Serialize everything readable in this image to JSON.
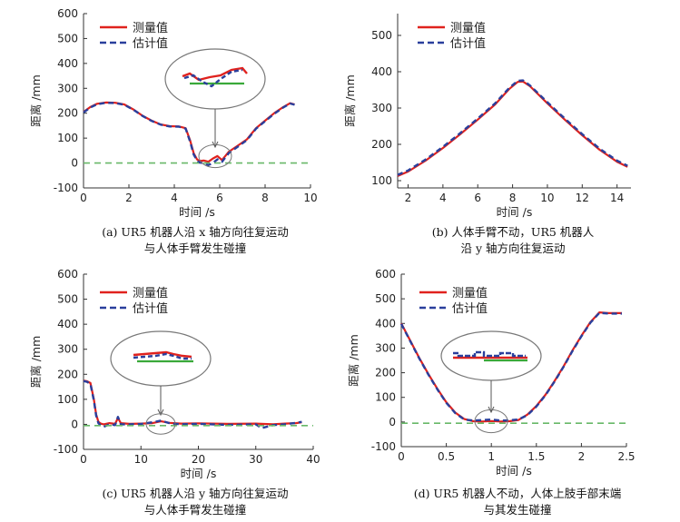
{
  "colors": {
    "measured": "#e0221e",
    "estimated": "#2a3f9c",
    "threshold": "#68b868",
    "zoom_green": "#3aa93a",
    "axis": "#333333"
  },
  "chart_data": [
    {
      "type": "line",
      "panel": "a",
      "caption_line1": "(a) UR5 机器人沿 x 轴方向往复运动",
      "caption_line2": "与人体手臂发生碰撞",
      "xlabel": "时间 /s",
      "ylabel": "距离 /mm",
      "xlim": [
        0,
        10
      ],
      "ylim": [
        -100,
        600
      ],
      "xticks": [
        0,
        2,
        4,
        6,
        8,
        10
      ],
      "yticks": [
        -100,
        0,
        100,
        200,
        300,
        400,
        500,
        600
      ],
      "legend": [
        "测量值",
        "估计值"
      ],
      "legend_position": "top-left",
      "inset": "zoom of collision region",
      "series": [
        {
          "name": "测量值",
          "style": "solid",
          "x": [
            0,
            0.3,
            0.6,
            1.0,
            1.4,
            1.8,
            2.2,
            2.6,
            3.0,
            3.4,
            3.8,
            4.2,
            4.5,
            4.7,
            4.85,
            5.0,
            5.1,
            5.3,
            5.5,
            5.7,
            5.9,
            6.1,
            6.4,
            6.8,
            7.2,
            7.6,
            8.0,
            8.4,
            8.8,
            9.1,
            9.3
          ],
          "values": [
            205,
            225,
            238,
            243,
            242,
            235,
            215,
            190,
            170,
            155,
            148,
            147,
            140,
            90,
            40,
            15,
            8,
            10,
            5,
            18,
            28,
            12,
            45,
            70,
            95,
            140,
            170,
            200,
            225,
            240,
            235
          ]
        },
        {
          "name": "估计值",
          "style": "dashed",
          "x": [
            0,
            0.3,
            0.6,
            1.0,
            1.4,
            1.8,
            2.2,
            2.6,
            3.0,
            3.4,
            3.8,
            4.2,
            4.5,
            4.7,
            4.85,
            5.0,
            5.1,
            5.3,
            5.5,
            5.7,
            5.9,
            6.1,
            6.4,
            6.8,
            7.2,
            7.6,
            8.0,
            8.4,
            8.8,
            9.1,
            9.3
          ],
          "values": [
            203,
            223,
            236,
            242,
            241,
            234,
            214,
            189,
            169,
            154,
            147,
            146,
            138,
            85,
            35,
            10,
            2,
            0,
            -8,
            0,
            15,
            5,
            40,
            66,
            92,
            138,
            168,
            198,
            223,
            239,
            234
          ]
        },
        {
          "name": "threshold",
          "style": "dashed-green",
          "x": [
            0,
            10
          ],
          "values": [
            0,
            0
          ]
        }
      ]
    },
    {
      "type": "line",
      "panel": "b",
      "caption_line1": "(b) 人体手臂不动，UR5 机器人",
      "caption_line2": "沿 y 轴方向往复运动",
      "xlabel": "时间 /s",
      "ylabel": "距离 /mm",
      "xlim": [
        1.4,
        14.8
      ],
      "ylim": [
        80,
        560
      ],
      "xticks": [
        2,
        4,
        6,
        8,
        10,
        12,
        14
      ],
      "yticks": [
        100,
        200,
        300,
        400,
        500
      ],
      "legend": [
        "测量值",
        "估计值"
      ],
      "legend_position": "top-right",
      "series": [
        {
          "name": "测量值",
          "style": "solid",
          "x": [
            1.4,
            2,
            3,
            4,
            5,
            6,
            7,
            7.8,
            8.3,
            8.6,
            9,
            10,
            11,
            12,
            13,
            14,
            14.6
          ],
          "values": [
            113,
            125,
            155,
            190,
            228,
            268,
            310,
            352,
            372,
            373,
            360,
            313,
            268,
            225,
            185,
            152,
            138
          ]
        },
        {
          "name": "估计值",
          "style": "dashed",
          "x": [
            1.4,
            2,
            3,
            4,
            5,
            6,
            7,
            7.8,
            8.3,
            8.6,
            9,
            10,
            11,
            12,
            13,
            14,
            14.6
          ],
          "values": [
            116,
            128,
            158,
            193,
            231,
            271,
            313,
            355,
            375,
            376,
            362,
            316,
            271,
            228,
            188,
            155,
            141
          ]
        }
      ]
    },
    {
      "type": "line",
      "panel": "c",
      "caption_line1": "(c) UR5 机器人沿 y 轴方向往复运动",
      "caption_line2": "与人体手臂发生碰撞",
      "xlabel": "时间 /s",
      "ylabel": "距离 /mm",
      "xlim": [
        0,
        40
      ],
      "ylim": [
        -100,
        600
      ],
      "xticks": [
        0,
        10,
        20,
        30,
        40
      ],
      "yticks": [
        -100,
        0,
        100,
        200,
        300,
        400,
        500,
        600
      ],
      "legend": [
        "测量值",
        "估计值"
      ],
      "legend_position": "top-left",
      "inset": "zoom of collision region",
      "series": [
        {
          "name": "测量值",
          "style": "solid",
          "x": [
            0,
            0.6,
            1.2,
            1.8,
            2.2,
            2.6,
            3.0,
            3.5,
            4.5,
            5.5,
            6.0,
            6.5,
            8,
            10,
            12,
            13.5,
            15,
            17,
            20,
            25,
            30,
            33,
            35,
            37,
            38
          ],
          "values": [
            175,
            172,
            165,
            100,
            40,
            10,
            3,
            0,
            5,
            2,
            25,
            5,
            2,
            3,
            5,
            12,
            6,
            3,
            4,
            2,
            3,
            0,
            3,
            5,
            8
          ]
        },
        {
          "name": "估计值",
          "style": "dashed",
          "x": [
            0,
            0.6,
            1.2,
            1.8,
            2.2,
            2.6,
            3.0,
            3.5,
            4.5,
            5.5,
            6.0,
            6.5,
            8,
            10,
            12,
            13.5,
            15,
            17,
            20,
            25,
            30,
            31,
            33,
            35,
            37,
            38
          ],
          "values": [
            173,
            170,
            162,
            95,
            35,
            5,
            -5,
            -10,
            0,
            -3,
            30,
            0,
            0,
            2,
            8,
            15,
            4,
            0,
            2,
            -2,
            0,
            -15,
            -3,
            0,
            6,
            10
          ]
        },
        {
          "name": "threshold",
          "style": "dashed-green",
          "x": [
            0,
            40
          ],
          "values": [
            -5,
            -5
          ]
        }
      ]
    },
    {
      "type": "line",
      "panel": "d",
      "caption_line1": "(d) UR5 机器人不动，人体上肢手部末端",
      "caption_line2": "与其发生碰撞",
      "xlabel": "时间 /s",
      "ylabel": "距离 /mm",
      "xlim": [
        0,
        2.5
      ],
      "ylim": [
        -100,
        600
      ],
      "xticks": [
        0,
        0.5,
        1,
        1.5,
        2,
        2.5
      ],
      "yticks": [
        -100,
        0,
        100,
        200,
        300,
        400,
        500,
        600
      ],
      "legend": [
        "测量值",
        "估计值"
      ],
      "legend_position": "top-center",
      "inset": "zoom of collision region",
      "series": [
        {
          "name": "测量值",
          "style": "solid",
          "x": [
            0,
            0.1,
            0.2,
            0.3,
            0.4,
            0.5,
            0.6,
            0.7,
            0.8,
            0.9,
            1.0,
            1.1,
            1.2,
            1.3,
            1.4,
            1.5,
            1.6,
            1.7,
            1.8,
            1.9,
            2.0,
            2.1,
            2.2,
            2.3,
            2.45
          ],
          "values": [
            400,
            330,
            260,
            195,
            135,
            80,
            38,
            12,
            3,
            2,
            4,
            2,
            3,
            8,
            30,
            65,
            110,
            165,
            225,
            290,
            350,
            405,
            445,
            442,
            442
          ]
        },
        {
          "name": "估计值",
          "style": "dashed",
          "x": [
            0,
            0.1,
            0.2,
            0.3,
            0.4,
            0.5,
            0.6,
            0.7,
            0.8,
            0.9,
            1.0,
            1.1,
            1.2,
            1.3,
            1.4,
            1.5,
            1.6,
            1.7,
            1.8,
            1.9,
            2.0,
            2.1,
            2.2,
            2.3,
            2.45
          ],
          "values": [
            398,
            328,
            258,
            193,
            133,
            78,
            36,
            10,
            6,
            8,
            10,
            6,
            7,
            10,
            28,
            63,
            108,
            163,
            223,
            288,
            348,
            403,
            443,
            440,
            440
          ]
        },
        {
          "name": "threshold",
          "style": "dashed-green",
          "x": [
            0,
            2.5
          ],
          "values": [
            -5,
            -5
          ]
        }
      ]
    }
  ]
}
